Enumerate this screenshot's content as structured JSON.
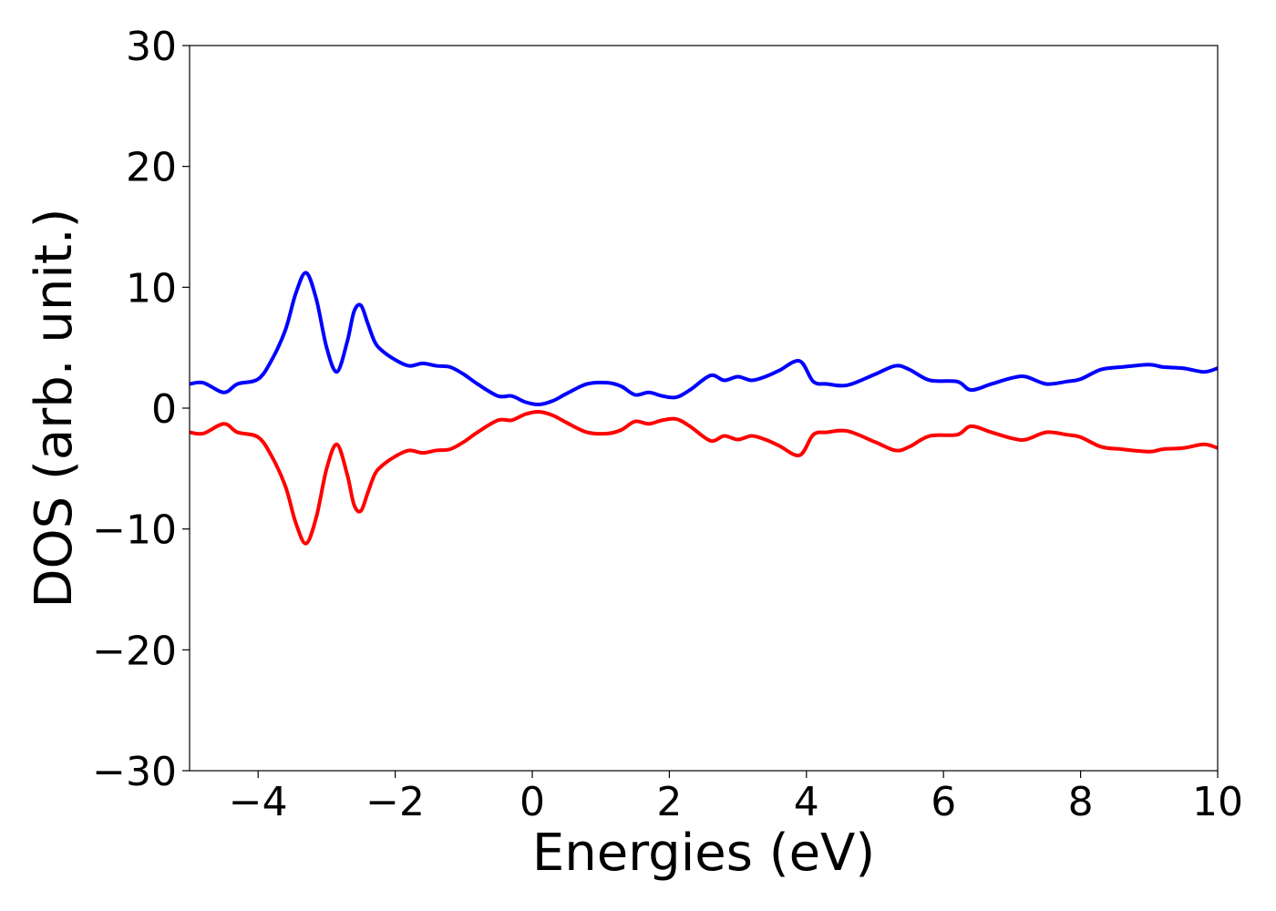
{
  "chart_data": {
    "type": "line",
    "title": "",
    "xlabel": "Energies (eV)",
    "ylabel": "DOS (arb. unit.)",
    "xlim": [
      -5,
      10
    ],
    "ylim": [
      -30,
      30
    ],
    "x_ticks": [
      -4,
      -2,
      0,
      2,
      4,
      6,
      8,
      10
    ],
    "y_ticks": [
      -30,
      -20,
      -10,
      0,
      10,
      20,
      30
    ],
    "x_tick_labels": [
      "−4",
      "−2",
      "0",
      "2",
      "4",
      "6",
      "8",
      "10"
    ],
    "y_tick_labels": [
      "−30",
      "−20",
      "−10",
      "0",
      "10",
      "20",
      "30"
    ],
    "grid": false,
    "legend": "none",
    "series": [
      {
        "color": "#0000ff",
        "x": [
          -5.0,
          -4.8,
          -4.5,
          -4.3,
          -4.0,
          -3.8,
          -3.6,
          -3.45,
          -3.3,
          -3.15,
          -3.0,
          -2.85,
          -2.7,
          -2.6,
          -2.5,
          -2.4,
          -2.3,
          -2.2,
          -2.0,
          -1.8,
          -1.6,
          -1.4,
          -1.2,
          -1.0,
          -0.8,
          -0.5,
          -0.3,
          -0.1,
          0.1,
          0.3,
          0.5,
          0.8,
          1.1,
          1.3,
          1.5,
          1.7,
          1.9,
          2.1,
          2.3,
          2.6,
          2.8,
          3.0,
          3.2,
          3.4,
          3.6,
          3.9,
          4.1,
          4.3,
          4.6,
          5.0,
          5.3,
          5.5,
          5.8,
          6.2,
          6.4,
          6.7,
          7.0,
          7.2,
          7.5,
          7.8,
          8.0,
          8.3,
          8.6,
          9.0,
          9.2,
          9.5,
          9.8,
          10.0
        ],
        "y": [
          2.0,
          2.1,
          1.3,
          2.0,
          2.4,
          4.0,
          6.5,
          9.5,
          11.2,
          9.0,
          5.0,
          3.0,
          5.5,
          8.0,
          8.5,
          7.0,
          5.5,
          4.8,
          4.0,
          3.5,
          3.7,
          3.5,
          3.4,
          2.8,
          2.0,
          1.0,
          1.0,
          0.5,
          0.3,
          0.6,
          1.2,
          2.0,
          2.1,
          1.8,
          1.1,
          1.3,
          1.0,
          0.9,
          1.5,
          2.7,
          2.3,
          2.6,
          2.3,
          2.6,
          3.1,
          3.9,
          2.2,
          2.0,
          1.9,
          2.8,
          3.5,
          3.2,
          2.3,
          2.2,
          1.5,
          2.0,
          2.5,
          2.6,
          2.0,
          2.2,
          2.4,
          3.2,
          3.4,
          3.6,
          3.4,
          3.3,
          3.0,
          3.3
        ]
      },
      {
        "color": "#ff0000",
        "x": [
          -5.0,
          -4.8,
          -4.5,
          -4.3,
          -4.0,
          -3.8,
          -3.6,
          -3.45,
          -3.3,
          -3.15,
          -3.0,
          -2.85,
          -2.7,
          -2.6,
          -2.5,
          -2.4,
          -2.3,
          -2.2,
          -2.0,
          -1.8,
          -1.6,
          -1.4,
          -1.2,
          -1.0,
          -0.8,
          -0.5,
          -0.3,
          -0.1,
          0.1,
          0.3,
          0.5,
          0.8,
          1.1,
          1.3,
          1.5,
          1.7,
          1.9,
          2.1,
          2.3,
          2.6,
          2.8,
          3.0,
          3.2,
          3.4,
          3.6,
          3.9,
          4.1,
          4.3,
          4.6,
          5.0,
          5.3,
          5.5,
          5.8,
          6.2,
          6.4,
          6.7,
          7.0,
          7.2,
          7.5,
          7.8,
          8.0,
          8.3,
          8.6,
          9.0,
          9.2,
          9.5,
          9.8,
          10.0
        ],
        "y": [
          -2.0,
          -2.1,
          -1.3,
          -2.0,
          -2.4,
          -4.0,
          -6.5,
          -9.5,
          -11.2,
          -9.0,
          -5.0,
          -3.0,
          -5.5,
          -8.0,
          -8.5,
          -7.0,
          -5.5,
          -4.8,
          -4.0,
          -3.5,
          -3.7,
          -3.5,
          -3.4,
          -2.8,
          -2.0,
          -1.0,
          -1.0,
          -0.5,
          -0.3,
          -0.6,
          -1.2,
          -2.0,
          -2.1,
          -1.8,
          -1.1,
          -1.3,
          -1.0,
          -0.9,
          -1.5,
          -2.7,
          -2.3,
          -2.6,
          -2.3,
          -2.6,
          -3.1,
          -3.9,
          -2.2,
          -2.0,
          -1.9,
          -2.8,
          -3.5,
          -3.2,
          -2.3,
          -2.2,
          -1.5,
          -2.0,
          -2.5,
          -2.6,
          -2.0,
          -2.2,
          -2.4,
          -3.2,
          -3.4,
          -3.6,
          -3.4,
          -3.3,
          -3.0,
          -3.3
        ]
      }
    ]
  }
}
